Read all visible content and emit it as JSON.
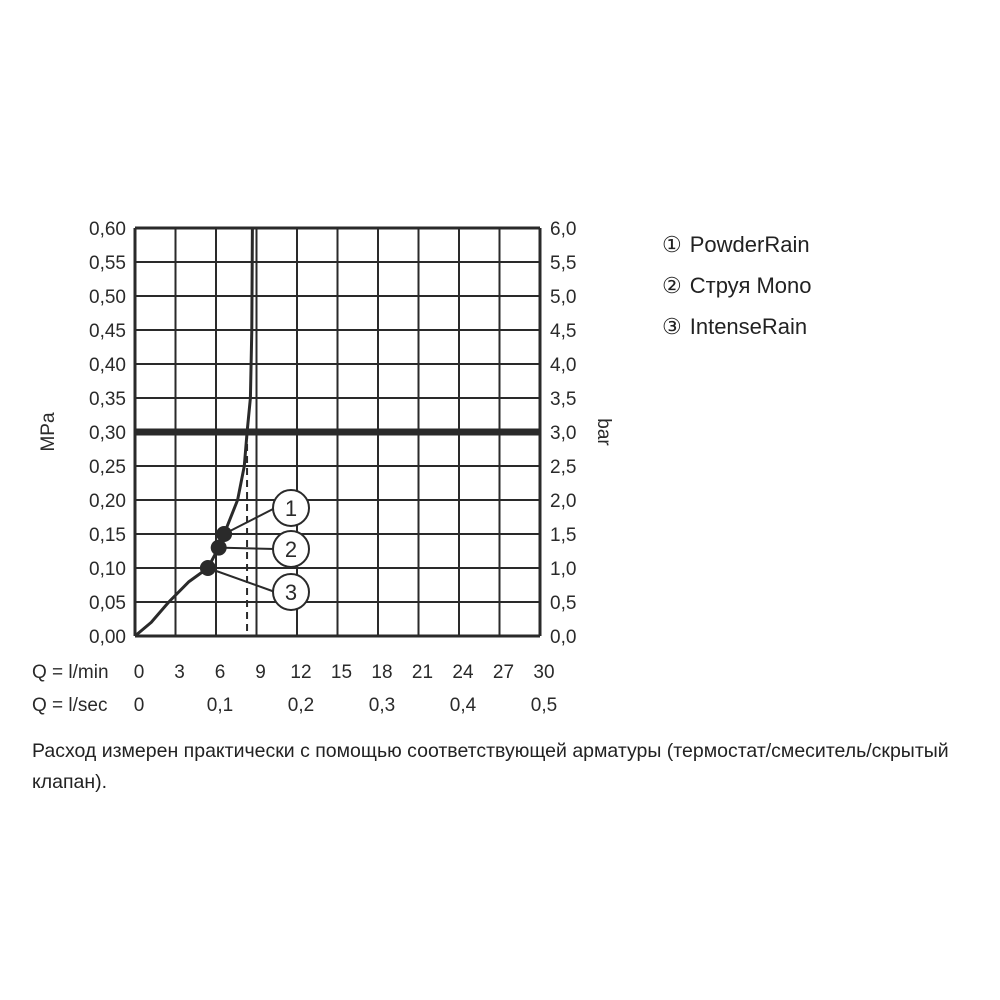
{
  "chart_data": {
    "type": "line",
    "y_left_label": "MPa",
    "y_right_label": "bar",
    "x_label_lmin": "Q = l/min",
    "x_label_lsec": "Q = l/sec",
    "xlim": [
      0,
      30
    ],
    "ylim": [
      0,
      0.6
    ],
    "grid": true,
    "x_ticks_lmin": [
      "0",
      "3",
      "6",
      "9",
      "12",
      "15",
      "18",
      "21",
      "24",
      "27",
      "30"
    ],
    "x_ticks_lsec": [
      {
        "v": 0,
        "label": "0"
      },
      {
        "v": 6,
        "label": "0,1"
      },
      {
        "v": 12,
        "label": "0,2"
      },
      {
        "v": 18,
        "label": "0,3"
      },
      {
        "v": 24,
        "label": "0,4"
      },
      {
        "v": 30,
        "label": "0,5"
      }
    ],
    "y_ticks_left": [
      "0,00",
      "0,05",
      "0,10",
      "0,15",
      "0,20",
      "0,25",
      "0,30",
      "0,35",
      "0,40",
      "0,45",
      "0,50",
      "0,55",
      "0,60"
    ],
    "y_ticks_right": [
      "0,0",
      "0,5",
      "1,0",
      "1,5",
      "2,0",
      "2,5",
      "3,0",
      "3,5",
      "4,0",
      "4,5",
      "5,0",
      "5,5",
      "6,0"
    ],
    "reference_line_y": 0.3,
    "dashed_line_x": 8.3,
    "curve": {
      "x": [
        0,
        1.2,
        2.5,
        4,
        5.4,
        6.2,
        6.6,
        7.6,
        8.1,
        8.3,
        8.55,
        8.65,
        8.7
      ],
      "y": [
        0,
        0.02,
        0.05,
        0.08,
        0.1,
        0.13,
        0.15,
        0.2,
        0.25,
        0.3,
        0.35,
        0.45,
        0.6
      ]
    },
    "markers": [
      {
        "id": "1",
        "x": 6.6,
        "y": 0.15
      },
      {
        "id": "2",
        "x": 6.2,
        "y": 0.13
      },
      {
        "id": "3",
        "x": 5.4,
        "y": 0.1
      }
    ]
  },
  "legend": [
    {
      "symbol": "①",
      "label": "PowderRain"
    },
    {
      "symbol": "②",
      "label": "Струя Mono"
    },
    {
      "symbol": "③",
      "label": "IntenseRain"
    }
  ],
  "note": "Расход измерен практически с помощью соответствующей арматуры (термостат/смеситель/скрытый клапан)."
}
